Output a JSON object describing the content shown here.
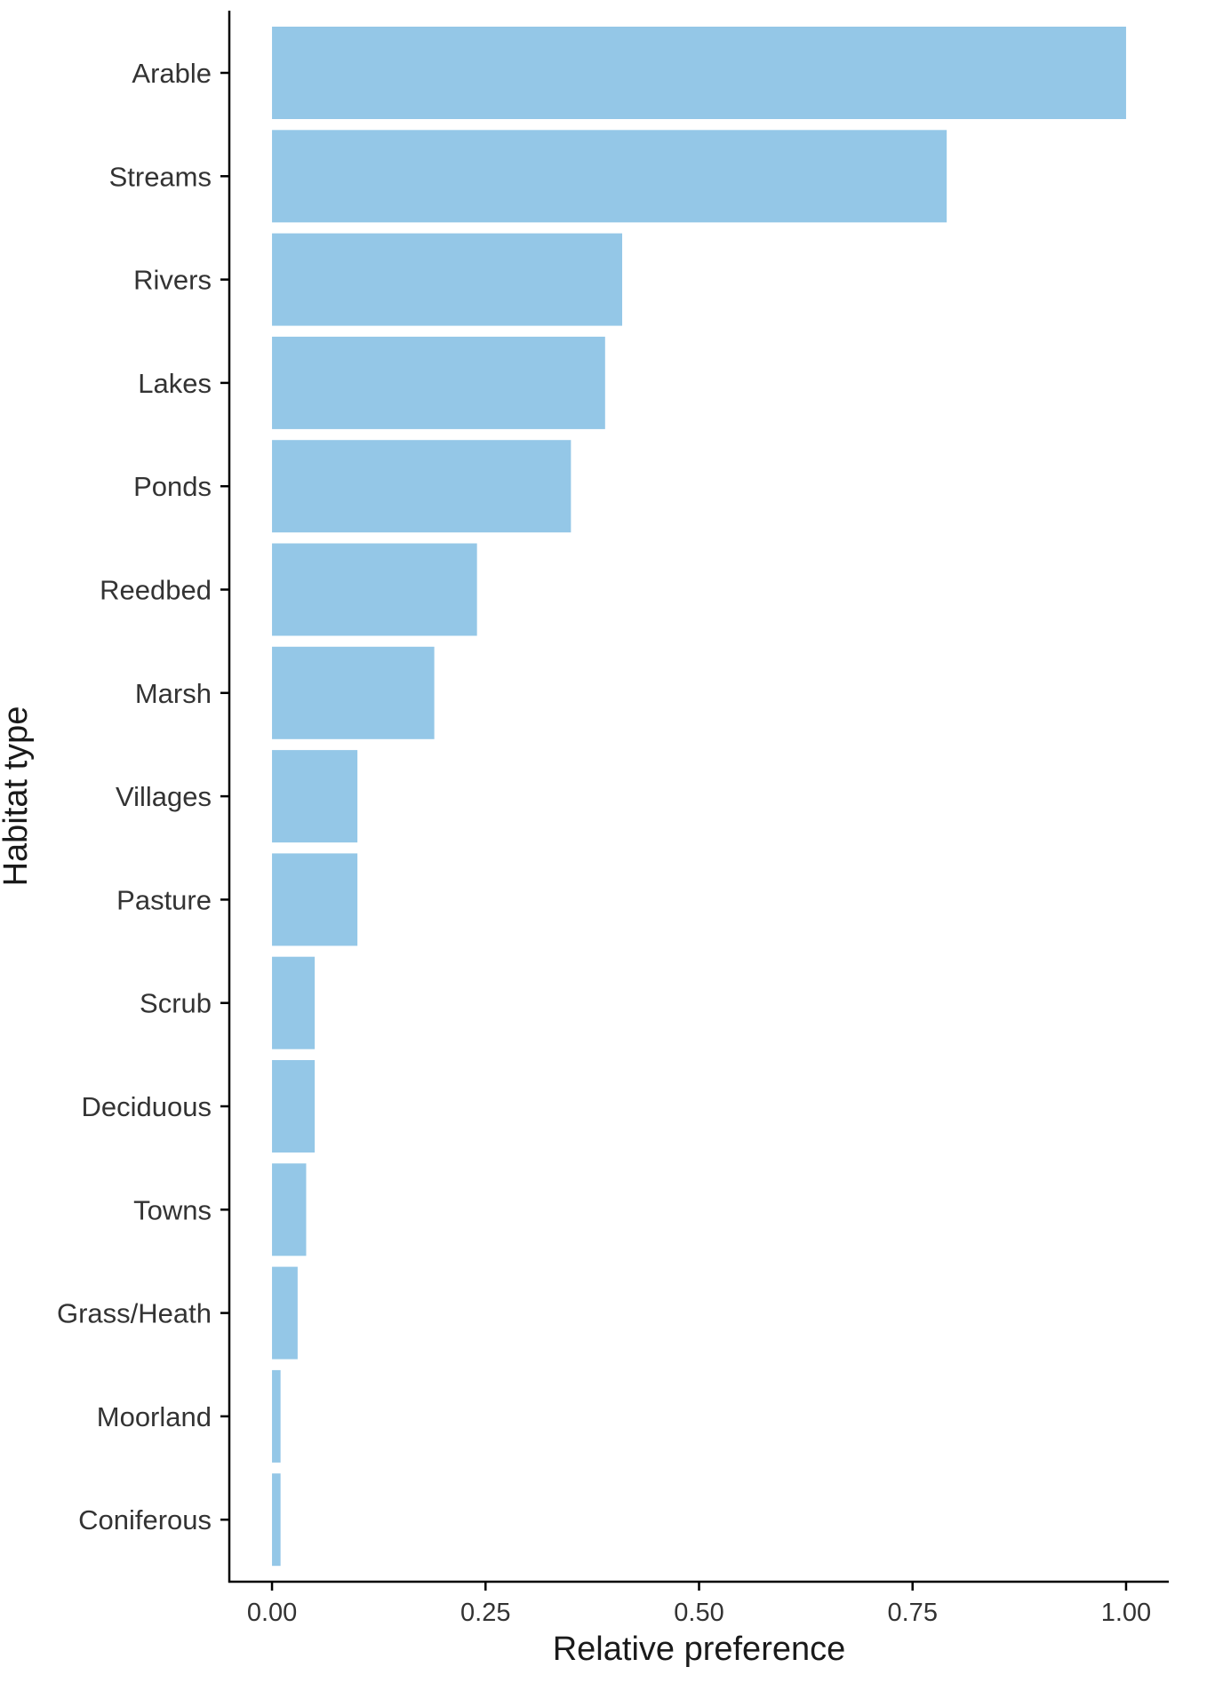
{
  "chart_data": {
    "type": "bar",
    "orientation": "horizontal",
    "categories": [
      "Arable",
      "Streams",
      "Rivers",
      "Lakes",
      "Ponds",
      "Reedbed",
      "Marsh",
      "Villages",
      "Pasture",
      "Scrub",
      "Deciduous",
      "Towns",
      "Grass/Heath",
      "Moorland",
      "Coniferous"
    ],
    "values": [
      1.0,
      0.79,
      0.41,
      0.39,
      0.35,
      0.24,
      0.19,
      0.1,
      0.1,
      0.05,
      0.05,
      0.04,
      0.03,
      0.01,
      0.01
    ],
    "title": "",
    "xlabel": "Relative preference",
    "ylabel": "Habitat type",
    "xlim": [
      -0.05,
      1.05
    ],
    "xticks": [
      0.0,
      0.25,
      0.5,
      0.75,
      1.0
    ],
    "xtick_labels": [
      "0.00",
      "0.25",
      "0.50",
      "0.75",
      "1.00"
    ],
    "bar_color": "#94c7e7",
    "grid": false,
    "legend": "none"
  }
}
